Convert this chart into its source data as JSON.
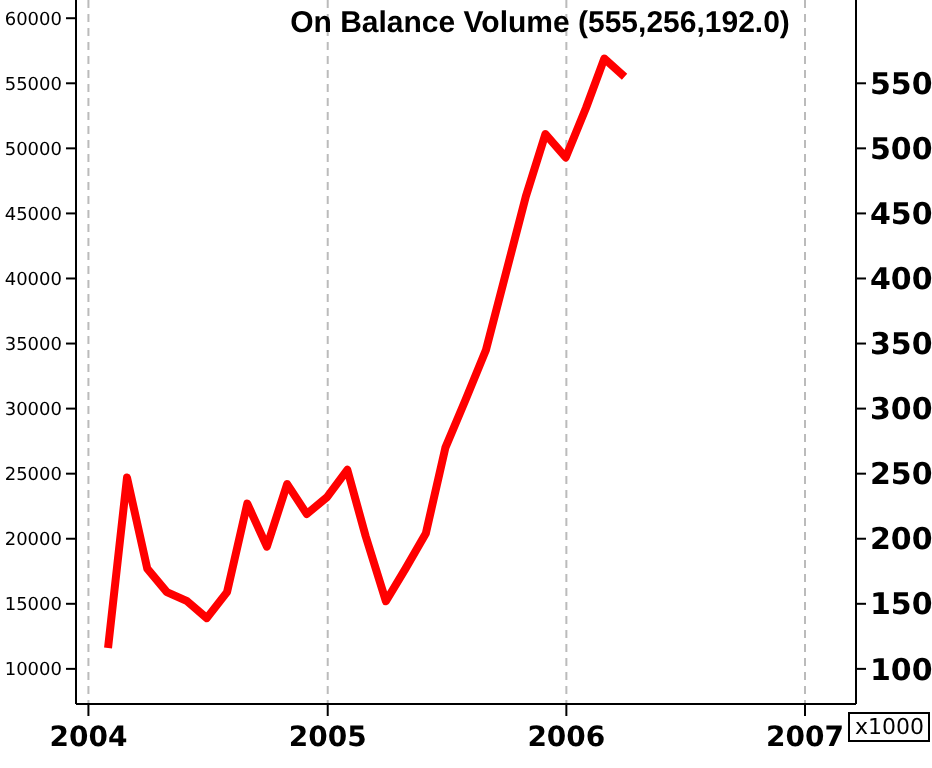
{
  "chart_data": {
    "type": "line",
    "title": "On Balance Volume (555,256,192.0)",
    "x": [
      "2004-01-31",
      "2004-02-29",
      "2004-03-31",
      "2004-04-30",
      "2004-05-31",
      "2004-06-30",
      "2004-07-31",
      "2004-08-31",
      "2004-09-30",
      "2004-10-31",
      "2004-11-30",
      "2004-12-31",
      "2005-01-31",
      "2005-02-28",
      "2005-03-31",
      "2005-04-30",
      "2005-05-31",
      "2005-06-30",
      "2005-07-31",
      "2005-08-31",
      "2005-09-30",
      "2005-10-31",
      "2005-11-30",
      "2005-12-31",
      "2006-01-31",
      "2006-02-28",
      "2006-03-31"
    ],
    "series": [
      {
        "color": "#ff0000",
        "values": [
          11600,
          24700,
          17700,
          15900,
          15200,
          13900,
          15900,
          22700,
          19400,
          24200,
          21900,
          23200,
          25300,
          20200,
          15200,
          17700,
          20400,
          27000,
          30700,
          34500,
          40300,
          46300,
          51100,
          49300,
          53100,
          56900,
          55500
        ]
      }
    ],
    "xlim": [
      "2003-12-13",
      "2007-03-20"
    ],
    "xticks": [
      {
        "value": "2004-01-01",
        "label": "2004"
      },
      {
        "value": "2005-01-01",
        "label": "2005"
      },
      {
        "value": "2006-01-01",
        "label": "2006"
      },
      {
        "value": "2007-01-01",
        "label": "2007"
      }
    ],
    "ylim": [
      7300,
      61400
    ],
    "yticks": [
      10000,
      15000,
      20000,
      25000,
      30000,
      35000,
      40000,
      45000,
      50000,
      55000,
      60000
    ],
    "y2lim": [
      73,
      614
    ],
    "y2ticks": [
      100,
      150,
      200,
      250,
      300,
      350,
      400,
      450,
      500,
      550
    ],
    "annotations": [
      "x1000"
    ],
    "grid": "x",
    "legend": false,
    "marker": "none",
    "line_style": "solid"
  }
}
